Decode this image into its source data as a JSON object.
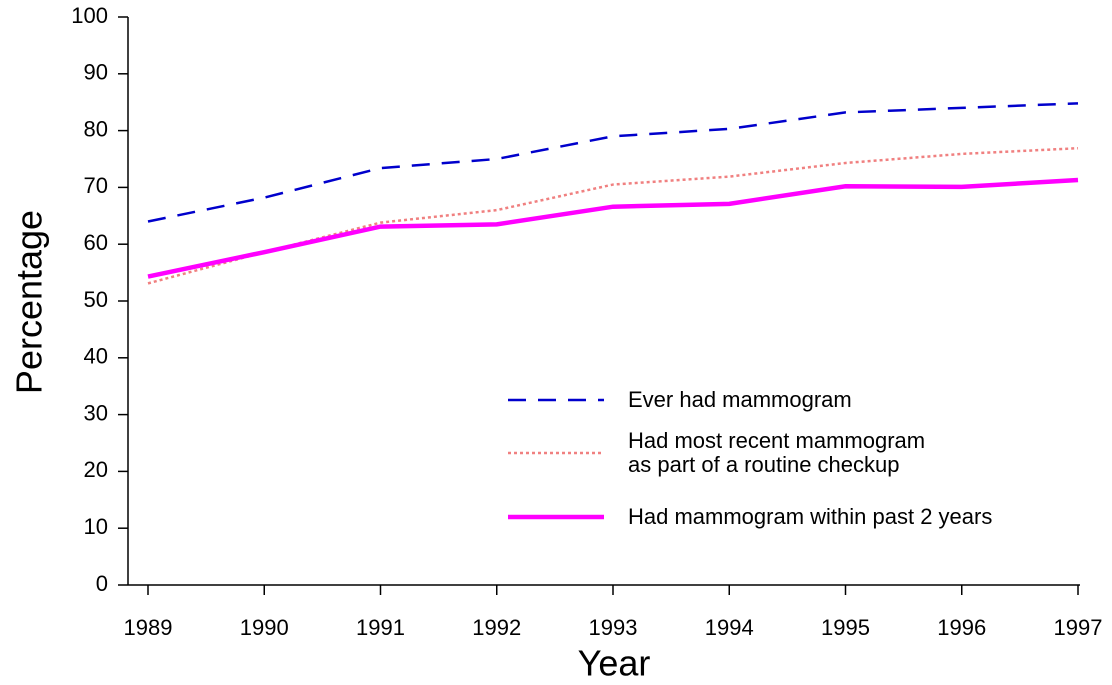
{
  "chart_data": {
    "type": "line",
    "xlabel": "Year",
    "ylabel": "Percentage",
    "x": [
      1989,
      1990,
      1991,
      1992,
      1993,
      1994,
      1995,
      1996,
      1997
    ],
    "xlim": [
      1989,
      1997
    ],
    "xticks": [
      1989,
      1990,
      1991,
      1992,
      1993,
      1994,
      1995,
      1996,
      1997
    ],
    "ylim": [
      0,
      100
    ],
    "yticks": [
      0,
      10,
      20,
      30,
      40,
      50,
      60,
      70,
      80,
      90,
      100
    ],
    "legend": "lower right",
    "series": [
      {
        "name": "Ever had mammogram",
        "color": "#0000cc",
        "style": "dashed",
        "values": [
          64.0,
          68.2,
          73.4,
          75.0,
          79.0,
          80.3,
          83.2,
          84.0,
          84.8
        ]
      },
      {
        "name": "Had most recent mammogram\nas part of a routine checkup",
        "color": "#f08080",
        "style": "dotted",
        "values": [
          53.1,
          58.6,
          63.8,
          66.0,
          70.5,
          71.9,
          74.3,
          75.9,
          76.9
        ]
      },
      {
        "name": "Had mammogram within past 2 years",
        "color": "#ff00ff",
        "style": "solid",
        "values": [
          54.3,
          58.6,
          63.1,
          63.5,
          66.6,
          67.1,
          70.2,
          70.1,
          71.3
        ]
      }
    ]
  }
}
